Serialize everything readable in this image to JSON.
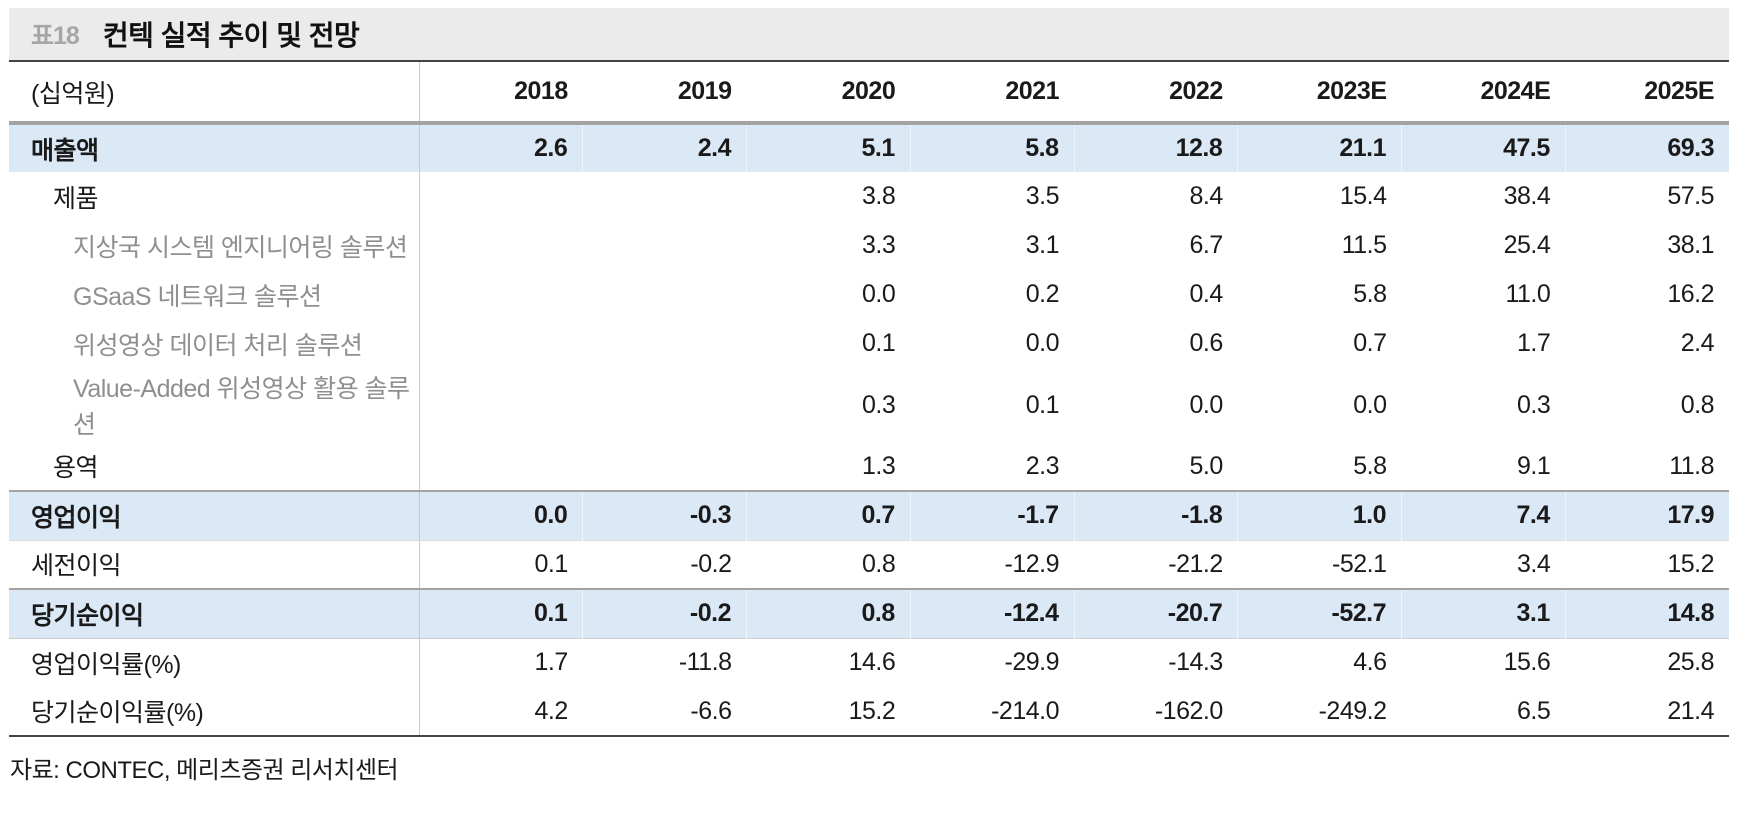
{
  "title": {
    "tag": "표18",
    "text": "컨텍 실적 추이 및 전망"
  },
  "table": {
    "unit_label": "(십억원)",
    "columns": [
      "2018",
      "2019",
      "2020",
      "2021",
      "2022",
      "2023E",
      "2024E",
      "2025E"
    ],
    "rows": [
      {
        "label": "매출액",
        "indent": 0,
        "style": "highlight",
        "values": [
          "2.6",
          "2.4",
          "5.1",
          "5.8",
          "12.8",
          "21.1",
          "47.5",
          "69.3"
        ]
      },
      {
        "label": "제품",
        "indent": 1,
        "style": "normal",
        "values": [
          "",
          "",
          "3.8",
          "3.5",
          "8.4",
          "15.4",
          "38.4",
          "57.5"
        ]
      },
      {
        "label": "지상국 시스템 엔지니어링 솔루션",
        "indent": 2,
        "style": "sub",
        "values": [
          "",
          "",
          "3.3",
          "3.1",
          "6.7",
          "11.5",
          "25.4",
          "38.1"
        ]
      },
      {
        "label": "GSaaS 네트워크 솔루션",
        "indent": 2,
        "style": "sub",
        "values": [
          "",
          "",
          "0.0",
          "0.2",
          "0.4",
          "5.8",
          "11.0",
          "16.2"
        ]
      },
      {
        "label": "위성영상 데이터 처리 솔루션",
        "indent": 2,
        "style": "sub",
        "values": [
          "",
          "",
          "0.1",
          "0.0",
          "0.6",
          "0.7",
          "1.7",
          "2.4"
        ]
      },
      {
        "label": "Value-Added 위성영상 활용 솔루션",
        "indent": 2,
        "style": "sub",
        "values": [
          "",
          "",
          "0.3",
          "0.1",
          "0.0",
          "0.0",
          "0.3",
          "0.8"
        ]
      },
      {
        "label": "용역",
        "indent": 1,
        "style": "normal",
        "values": [
          "",
          "",
          "1.3",
          "2.3",
          "5.0",
          "5.8",
          "9.1",
          "11.8"
        ]
      },
      {
        "label": "영업이익",
        "indent": 0,
        "style": "highlight",
        "values": [
          "0.0",
          "-0.3",
          "0.7",
          "-1.7",
          "-1.8",
          "1.0",
          "7.4",
          "17.9"
        ]
      },
      {
        "label": "세전이익",
        "indent": 0,
        "style": "normal",
        "values": [
          "0.1",
          "-0.2",
          "0.8",
          "-12.9",
          "-21.2",
          "-52.1",
          "3.4",
          "15.2"
        ]
      },
      {
        "label": "당기순이익",
        "indent": 0,
        "style": "highlight",
        "values": [
          "0.1",
          "-0.2",
          "0.8",
          "-12.4",
          "-20.7",
          "-52.7",
          "3.1",
          "14.8"
        ]
      },
      {
        "label": "영업이익률(%)",
        "indent": 0,
        "style": "normal",
        "values": [
          "1.7",
          "-11.8",
          "14.6",
          "-29.9",
          "-14.3",
          "4.6",
          "15.6",
          "25.8"
        ]
      },
      {
        "label": "당기순이익률(%)",
        "indent": 0,
        "style": "normal",
        "values": [
          "4.2",
          "-6.6",
          "15.2",
          "-214.0",
          "-162.0",
          "-249.2",
          "6.5",
          "21.4"
        ]
      }
    ]
  },
  "source": "자료: CONTEC, 메리츠증권 리서치센터",
  "colors": {
    "title_bar_bg": "#ebebeb",
    "tag_text": "#a6a6a6",
    "highlight_row_bg": "#dbe8f6",
    "sub_label_text": "#8f8f8f",
    "strong_border": "#454545",
    "section_border": "#a3a3a3",
    "divider": "#c9c9c9"
  }
}
